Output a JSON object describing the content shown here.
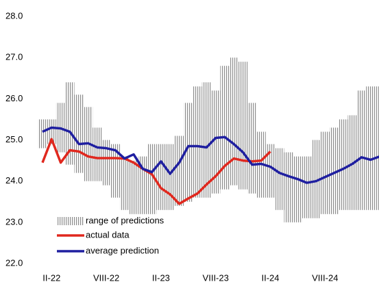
{
  "chart_data": {
    "type": "line",
    "categories": [
      null,
      "II-22",
      null,
      null,
      null,
      null,
      null,
      "VIII-22",
      null,
      null,
      null,
      null,
      null,
      "II-23",
      null,
      null,
      null,
      null,
      null,
      "VIII-23",
      null,
      null,
      null,
      null,
      null,
      "II-24",
      null,
      null,
      null,
      null,
      null,
      "VIII-24",
      null,
      null,
      null,
      null,
      null,
      null
    ],
    "ylim": [
      22,
      28
    ],
    "yticks": [
      {
        "value": 22,
        "label": "22.0"
      },
      {
        "value": 23,
        "label": "23.0"
      },
      {
        "value": 24,
        "label": "24.0"
      },
      {
        "value": 25,
        "label": "25.0"
      },
      {
        "value": 26,
        "label": "26.0"
      },
      {
        "value": 27,
        "label": "27.0"
      },
      {
        "value": 28,
        "label": "28.0"
      }
    ],
    "grid": false,
    "legend": "lower left",
    "range": {
      "name": "range of predictions",
      "color": "#8c8c8c",
      "low": [
        24.8,
        24.9,
        24.7,
        24.4,
        24.2,
        24.0,
        24.0,
        23.9,
        23.6,
        23.3,
        23.2,
        23.2,
        23.2,
        23.3,
        23.3,
        23.4,
        23.5,
        23.6,
        23.6,
        23.7,
        23.8,
        23.9,
        23.8,
        23.7,
        23.6,
        23.6,
        23.3,
        23.0,
        23.0,
        23.1,
        23.1,
        23.2,
        23.2,
        23.3,
        23.3,
        23.3,
        23.3,
        23.3
      ],
      "high": [
        25.5,
        25.5,
        25.9,
        26.4,
        26.1,
        25.8,
        25.3,
        25.0,
        24.9,
        24.6,
        24.5,
        24.6,
        24.9,
        24.9,
        24.9,
        25.1,
        25.9,
        26.3,
        26.4,
        26.2,
        26.8,
        27.0,
        26.9,
        25.9,
        25.2,
        24.9,
        24.8,
        24.7,
        24.6,
        24.6,
        25.0,
        25.2,
        25.3,
        25.5,
        25.6,
        26.2,
        26.3,
        26.3
      ]
    },
    "series": [
      {
        "name": "actual data",
        "color": "#e0281e",
        "values": [
          24.45,
          25.02,
          24.45,
          24.75,
          24.72,
          24.6,
          24.56,
          24.56,
          24.56,
          24.55,
          24.45,
          24.3,
          24.17,
          23.83,
          23.68,
          23.45,
          23.58,
          23.7,
          23.92,
          24.12,
          24.37,
          24.55,
          24.5,
          24.48,
          24.5,
          24.72,
          null,
          null,
          null,
          null,
          null,
          null,
          null,
          null,
          null,
          null,
          null,
          null
        ]
      },
      {
        "name": "average prediction",
        "color": "#1f1fa0",
        "values": [
          25.2,
          25.3,
          25.28,
          25.2,
          24.9,
          24.92,
          24.82,
          24.8,
          24.75,
          24.55,
          24.65,
          24.3,
          24.22,
          24.48,
          24.18,
          24.45,
          24.85,
          24.85,
          24.82,
          25.05,
          25.07,
          24.9,
          24.7,
          24.4,
          24.42,
          24.35,
          24.2,
          24.12,
          24.05,
          23.96,
          24.0,
          24.1,
          24.2,
          24.3,
          24.42,
          24.58,
          24.52,
          24.6
        ]
      }
    ]
  }
}
